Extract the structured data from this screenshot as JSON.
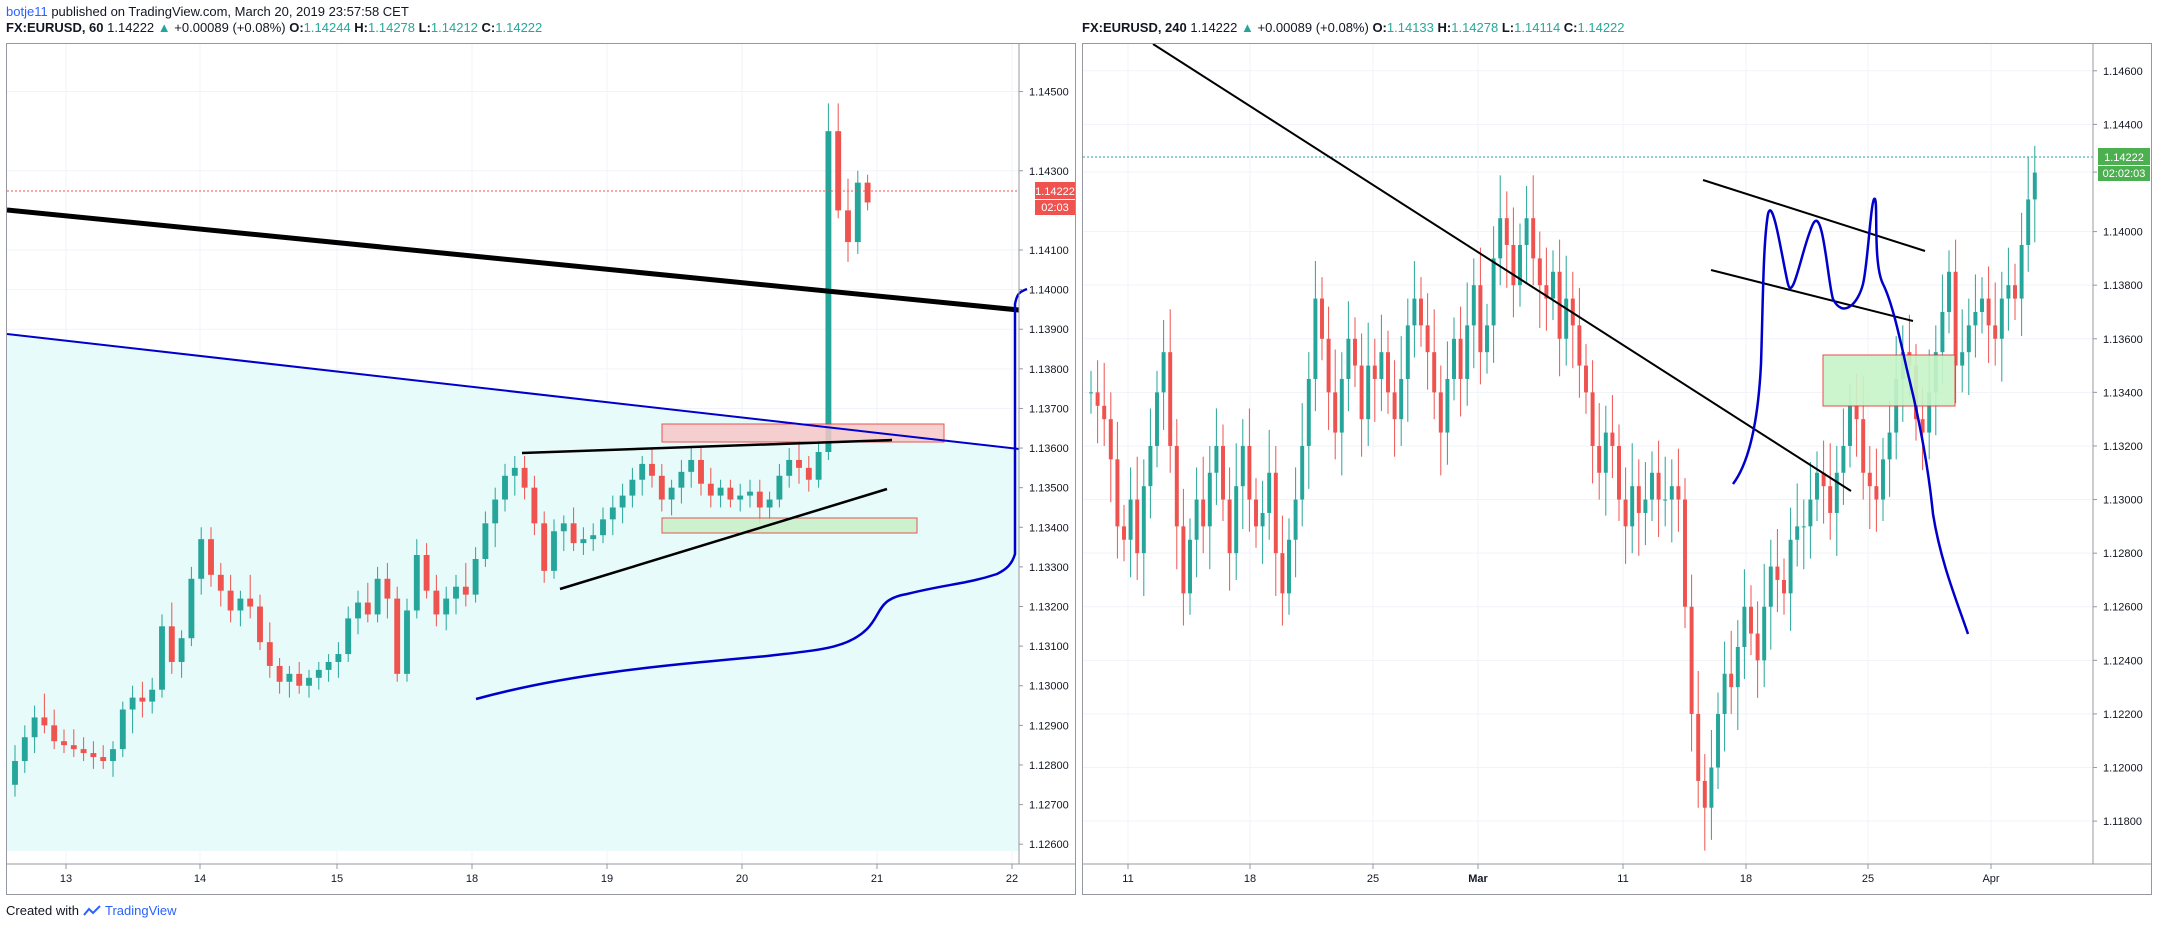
{
  "header": {
    "username": "botje11",
    "published_text": "published on TradingView.com, March 20, 2019 23:57:58 CET"
  },
  "footer": {
    "created_with": "Created with",
    "brand": "TradingView"
  },
  "colors": {
    "up": "#26a69a",
    "down": "#ef5350",
    "trendline": "#000000",
    "channel": "#0000cc",
    "shade": "#e8fbfb",
    "price_tag_left": "#ef5350",
    "price_tag_right": "#4caf50"
  },
  "charts": [
    {
      "legend": {
        "symbol": "FX:EURUSD, 60",
        "last": "1.14222",
        "arrow": "▲",
        "change": "+0.00089 (+0.08%)",
        "o_label": "O:",
        "o": "1.14244",
        "h_label": "H:",
        "h": "1.14278",
        "l_label": "L:",
        "l": "1.14212",
        "c_label": "C:",
        "c": "1.14222"
      },
      "price_tag": "1.14222",
      "countdown": "02:03"
    },
    {
      "legend": {
        "symbol": "FX:EURUSD, 240",
        "last": "1.14222",
        "arrow": "▲",
        "change": "+0.00089 (+0.08%)",
        "o_label": "O:",
        "o": "1.14133",
        "h_label": "H:",
        "h": "1.14278",
        "l_label": "L:",
        "l": "1.14114",
        "c_label": "C:",
        "c": "1.14222"
      },
      "price_tag": "1.14222",
      "countdown": "02:02:03"
    }
  ],
  "chart_data": [
    {
      "type": "candlestick",
      "title": "FX:EURUSD, 60",
      "x_ticks": [
        "13",
        "14",
        "15",
        "18",
        "19",
        "20",
        "21",
        "22"
      ],
      "y_ticks": [
        "1.14500",
        "1.14300",
        "1.14100",
        "1.14000",
        "1.13900",
        "1.13800",
        "1.13700",
        "1.13600",
        "1.13500",
        "1.13400",
        "1.13300",
        "1.13200",
        "1.13100",
        "1.13000",
        "1.12900",
        "1.12800",
        "1.12700",
        "1.12600"
      ],
      "ylim": [
        1.1255,
        1.1462
      ],
      "last_price": 1.14222,
      "candles": [
        [
          1.1275,
          1.1285,
          1.1272,
          1.1281
        ],
        [
          1.1281,
          1.129,
          1.1278,
          1.1287
        ],
        [
          1.1287,
          1.1295,
          1.1283,
          1.1292
        ],
        [
          1.1292,
          1.1298,
          1.1288,
          1.129
        ],
        [
          1.129,
          1.1294,
          1.1284,
          1.1286
        ],
        [
          1.1286,
          1.1289,
          1.1283,
          1.1285
        ],
        [
          1.1285,
          1.1289,
          1.1282,
          1.1284
        ],
        [
          1.1284,
          1.1287,
          1.1281,
          1.1283
        ],
        [
          1.1283,
          1.1286,
          1.1279,
          1.1282
        ],
        [
          1.1282,
          1.1285,
          1.1279,
          1.1281
        ],
        [
          1.1281,
          1.1286,
          1.1277,
          1.1284
        ],
        [
          1.1284,
          1.1296,
          1.1282,
          1.1294
        ],
        [
          1.1294,
          1.13,
          1.1288,
          1.1297
        ],
        [
          1.1297,
          1.1301,
          1.1292,
          1.1296
        ],
        [
          1.1296,
          1.1302,
          1.1293,
          1.1299
        ],
        [
          1.1299,
          1.1318,
          1.1297,
          1.1315
        ],
        [
          1.1315,
          1.1321,
          1.1303,
          1.1306
        ],
        [
          1.1306,
          1.1314,
          1.1302,
          1.1312
        ],
        [
          1.1312,
          1.133,
          1.131,
          1.1327
        ],
        [
          1.1327,
          1.134,
          1.1323,
          1.1337
        ],
        [
          1.1337,
          1.134,
          1.1325,
          1.1328
        ],
        [
          1.1328,
          1.1331,
          1.132,
          1.1324
        ],
        [
          1.1324,
          1.1328,
          1.1316,
          1.1319
        ],
        [
          1.1319,
          1.1324,
          1.1315,
          1.1322
        ],
        [
          1.1322,
          1.1328,
          1.1317,
          1.132
        ],
        [
          1.132,
          1.1323,
          1.1309,
          1.1311
        ],
        [
          1.1311,
          1.1316,
          1.1302,
          1.1305
        ],
        [
          1.1305,
          1.1307,
          1.1298,
          1.1301
        ],
        [
          1.1301,
          1.1305,
          1.1297,
          1.1303
        ],
        [
          1.1303,
          1.1306,
          1.1298,
          1.13
        ],
        [
          1.13,
          1.1304,
          1.1297,
          1.1302
        ],
        [
          1.1302,
          1.1306,
          1.1299,
          1.1304
        ],
        [
          1.1304,
          1.1308,
          1.1301,
          1.1306
        ],
        [
          1.1306,
          1.1311,
          1.1302,
          1.1308
        ],
        [
          1.1308,
          1.132,
          1.1306,
          1.1317
        ],
        [
          1.1317,
          1.1324,
          1.1313,
          1.1321
        ],
        [
          1.1321,
          1.1326,
          1.1316,
          1.1318
        ],
        [
          1.1318,
          1.133,
          1.1316,
          1.1327
        ],
        [
          1.1327,
          1.1331,
          1.1317,
          1.1322
        ],
        [
          1.1322,
          1.1325,
          1.1301,
          1.1303
        ],
        [
          1.1303,
          1.1322,
          1.1301,
          1.1319
        ],
        [
          1.1319,
          1.1337,
          1.1317,
          1.1333
        ],
        [
          1.1333,
          1.1336,
          1.1322,
          1.1324
        ],
        [
          1.1324,
          1.1328,
          1.1315,
          1.1318
        ],
        [
          1.1318,
          1.1325,
          1.1314,
          1.1322
        ],
        [
          1.1322,
          1.1328,
          1.1318,
          1.1325
        ],
        [
          1.1325,
          1.1331,
          1.132,
          1.1323
        ],
        [
          1.1323,
          1.1335,
          1.1321,
          1.1332
        ],
        [
          1.1332,
          1.1344,
          1.133,
          1.1341
        ],
        [
          1.1341,
          1.135,
          1.1335,
          1.1347
        ],
        [
          1.1347,
          1.1356,
          1.1344,
          1.1353
        ],
        [
          1.1353,
          1.1358,
          1.1348,
          1.1355
        ],
        [
          1.1355,
          1.1358,
          1.1347,
          1.135
        ],
        [
          1.135,
          1.1353,
          1.1338,
          1.1341
        ],
        [
          1.1341,
          1.1344,
          1.1326,
          1.1329
        ],
        [
          1.1329,
          1.1342,
          1.1327,
          1.1339
        ],
        [
          1.1339,
          1.1343,
          1.1334,
          1.1341
        ],
        [
          1.1341,
          1.1345,
          1.1334,
          1.1336
        ],
        [
          1.1336,
          1.134,
          1.1333,
          1.1337
        ],
        [
          1.1337,
          1.1341,
          1.1334,
          1.1338
        ],
        [
          1.1338,
          1.1345,
          1.1336,
          1.1342
        ],
        [
          1.1342,
          1.1348,
          1.1338,
          1.1345
        ],
        [
          1.1345,
          1.1351,
          1.1341,
          1.1348
        ],
        [
          1.1348,
          1.1355,
          1.1345,
          1.1352
        ],
        [
          1.1352,
          1.1358,
          1.1348,
          1.1356
        ],
        [
          1.1356,
          1.136,
          1.135,
          1.1353
        ],
        [
          1.1353,
          1.1356,
          1.1344,
          1.1347
        ],
        [
          1.1347,
          1.1352,
          1.1343,
          1.135
        ],
        [
          1.135,
          1.1357,
          1.1346,
          1.1354
        ],
        [
          1.1354,
          1.136,
          1.135,
          1.1357
        ],
        [
          1.1357,
          1.136,
          1.1348,
          1.1351
        ],
        [
          1.1351,
          1.1355,
          1.1345,
          1.1348
        ],
        [
          1.1348,
          1.1352,
          1.1345,
          1.135
        ],
        [
          1.135,
          1.1352,
          1.1345,
          1.1347
        ],
        [
          1.1347,
          1.1351,
          1.1344,
          1.1348
        ],
        [
          1.1348,
          1.1352,
          1.1345,
          1.1349
        ],
        [
          1.1349,
          1.1352,
          1.1341,
          1.1345
        ],
        [
          1.1345,
          1.1349,
          1.1342,
          1.1347
        ],
        [
          1.1347,
          1.1356,
          1.1345,
          1.1353
        ],
        [
          1.1353,
          1.136,
          1.135,
          1.1357
        ],
        [
          1.1357,
          1.1362,
          1.1351,
          1.1355
        ],
        [
          1.1355,
          1.1358,
          1.1349,
          1.1352
        ],
        [
          1.1352,
          1.1362,
          1.135,
          1.1359
        ],
        [
          1.1359,
          1.1447,
          1.1357,
          1.144
        ],
        [
          1.144,
          1.1447,
          1.1418,
          1.142
        ],
        [
          1.142,
          1.1428,
          1.1407,
          1.1412
        ],
        [
          1.1412,
          1.143,
          1.1409,
          1.1427
        ],
        [
          1.1427,
          1.1429,
          1.142,
          1.1422
        ]
      ]
    },
    {
      "type": "candlestick",
      "title": "FX:EURUSD, 240",
      "x_ticks": [
        "11",
        "18",
        "25",
        "Mar",
        "11",
        "18",
        "25",
        "Apr"
      ],
      "y_ticks": [
        "1.14600",
        "1.14400",
        "1.14222",
        "1.14000",
        "1.13800",
        "1.13600",
        "1.13400",
        "1.13200",
        "1.13000",
        "1.12800",
        "1.12600",
        "1.12400",
        "1.12200",
        "1.12000",
        "1.11800"
      ],
      "ylim": [
        1.1164,
        1.147
      ],
      "last_price": 1.14222,
      "closes": [
        1.134,
        1.1335,
        1.133,
        1.1315,
        1.129,
        1.1285,
        1.13,
        1.128,
        1.1305,
        1.132,
        1.134,
        1.1355,
        1.132,
        1.129,
        1.1265,
        1.1285,
        1.13,
        1.129,
        1.131,
        1.132,
        1.13,
        1.128,
        1.1305,
        1.132,
        1.13,
        1.129,
        1.1295,
        1.131,
        1.128,
        1.1265,
        1.1285,
        1.13,
        1.132,
        1.1345,
        1.1375,
        1.136,
        1.134,
        1.1325,
        1.1345,
        1.136,
        1.135,
        1.133,
        1.135,
        1.1345,
        1.1355,
        1.134,
        1.133,
        1.1345,
        1.1365,
        1.1375,
        1.1365,
        1.1355,
        1.134,
        1.1325,
        1.1345,
        1.136,
        1.1345,
        1.1365,
        1.138,
        1.1355,
        1.1365,
        1.139,
        1.1405,
        1.1395,
        1.138,
        1.1395,
        1.1405,
        1.139,
        1.138,
        1.1375,
        1.1385,
        1.136,
        1.1375,
        1.1365,
        1.135,
        1.134,
        1.132,
        1.131,
        1.1325,
        1.132,
        1.13,
        1.129,
        1.1305,
        1.1295,
        1.13,
        1.131,
        1.13,
        1.13,
        1.1305,
        1.13,
        1.126,
        1.122,
        1.1195,
        1.1185,
        1.12,
        1.122,
        1.1235,
        1.123,
        1.1245,
        1.126,
        1.125,
        1.124,
        1.126,
        1.1275,
        1.127,
        1.1265,
        1.1285,
        1.129,
        1.129,
        1.13,
        1.131,
        1.1305,
        1.1295,
        1.131,
        1.132,
        1.1335,
        1.133,
        1.131,
        1.1305,
        1.13,
        1.1315,
        1.1325,
        1.1345,
        1.1355,
        1.135,
        1.133,
        1.1325,
        1.134,
        1.1355,
        1.137,
        1.1385,
        1.135,
        1.1355,
        1.1365,
        1.137,
        1.1375,
        1.1365,
        1.136,
        1.1375,
        1.138,
        1.1375,
        1.1395,
        1.1412,
        1.1422
      ]
    }
  ]
}
